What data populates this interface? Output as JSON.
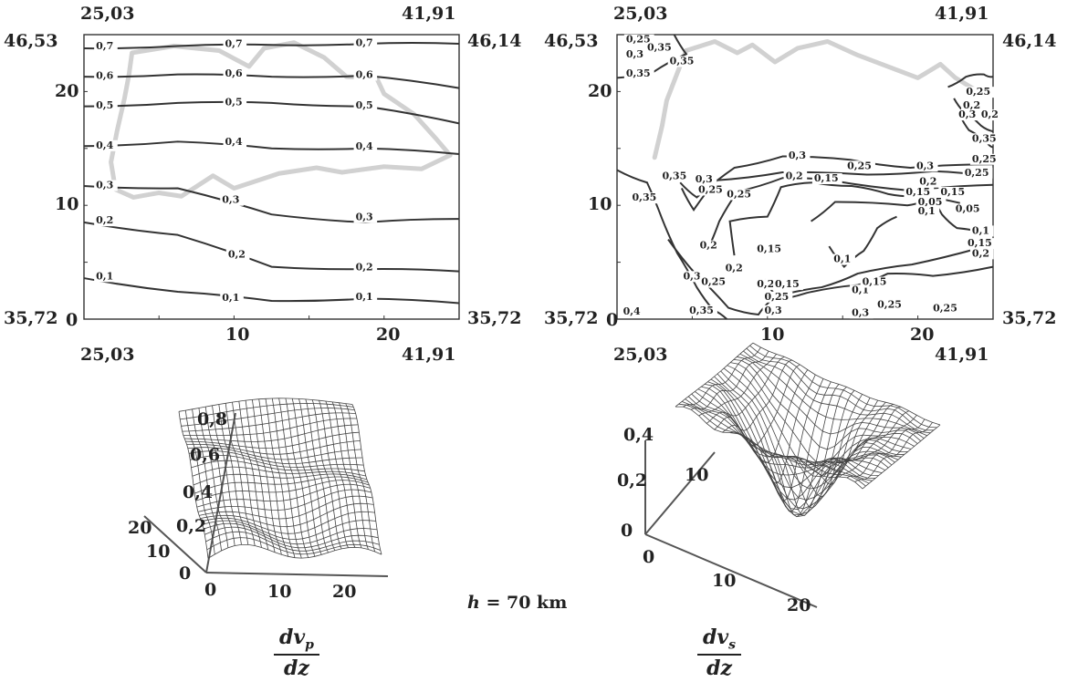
{
  "caption": {
    "h_var": "h",
    "h_value": "= 70 km"
  },
  "colors": {
    "contour": "#333333",
    "coast": "#c9c9c9",
    "mesh": "#444444",
    "axis": "#555555"
  },
  "chart_data": [
    {
      "type": "contour",
      "name_label": {
        "num": "dv",
        "sub": "p",
        "den": "dz"
      },
      "corner_labels": {
        "top_left_lon": "25,03",
        "top_right_lon": "41,91",
        "left_top_lat": "46,53",
        "right_top_lat": "46,14",
        "left_bottom_lat": "35,72",
        "right_bottom_lat": "35,72",
        "bottom_left_lon": "25,03",
        "bottom_right_lon": "41,91"
      },
      "xlim": [
        0,
        25
      ],
      "ylim": [
        0,
        25
      ],
      "x_ticks": [
        "10",
        "20"
      ],
      "y_ticks": [
        "0",
        "10",
        "20"
      ],
      "contours": [
        {
          "level": "0,7",
          "y": [
            23.8,
            24.0,
            24.1,
            24.2,
            24.2
          ]
        },
        {
          "level": "0,6",
          "y": [
            21.3,
            21.5,
            21.3,
            21.4,
            20.3
          ]
        },
        {
          "level": "0,5",
          "y": [
            18.7,
            19.0,
            19.0,
            18.7,
            17.2
          ]
        },
        {
          "level": "0,4",
          "y": [
            15.2,
            15.6,
            15.0,
            15.0,
            14.5
          ]
        },
        {
          "level": "0,3",
          "y": [
            11.7,
            11.5,
            9.2,
            8.5,
            8.8
          ]
        },
        {
          "level": "0,2",
          "y": [
            8.5,
            7.4,
            4.6,
            4.4,
            4.2
          ]
        },
        {
          "level": "0,1",
          "y": [
            3.6,
            2.4,
            1.6,
            1.8,
            1.4
          ]
        }
      ],
      "line_labels": [
        {
          "text": "0,7",
          "x": 0.8,
          "y": 23.7
        },
        {
          "text": "0,7",
          "x": 9.4,
          "y": 23.9
        },
        {
          "text": "0,7",
          "x": 18.1,
          "y": 24.0
        },
        {
          "text": "0,6",
          "x": 0.8,
          "y": 21.1
        },
        {
          "text": "0,6",
          "x": 9.4,
          "y": 21.3
        },
        {
          "text": "0,6",
          "x": 18.1,
          "y": 21.2
        },
        {
          "text": "0,5",
          "x": 0.8,
          "y": 18.5
        },
        {
          "text": "0,5",
          "x": 9.4,
          "y": 18.8
        },
        {
          "text": "0,5",
          "x": 18.1,
          "y": 18.5
        },
        {
          "text": "0,4",
          "x": 0.8,
          "y": 15.0
        },
        {
          "text": "0,4",
          "x": 9.4,
          "y": 15.3
        },
        {
          "text": "0,4",
          "x": 18.1,
          "y": 14.9
        },
        {
          "text": "0,3",
          "x": 0.8,
          "y": 11.5
        },
        {
          "text": "0,3",
          "x": 9.2,
          "y": 10.2
        },
        {
          "text": "0,3",
          "x": 18.1,
          "y": 8.7
        },
        {
          "text": "0,2",
          "x": 0.8,
          "y": 8.4
        },
        {
          "text": "0,2",
          "x": 9.6,
          "y": 5.4
        },
        {
          "text": "0,2",
          "x": 18.1,
          "y": 4.3
        },
        {
          "text": "0,1",
          "x": 0.8,
          "y": 3.5
        },
        {
          "text": "0,1",
          "x": 9.2,
          "y": 1.6
        },
        {
          "text": "0,1",
          "x": 18.1,
          "y": 1.7
        }
      ]
    },
    {
      "type": "contour",
      "name_label": {
        "num": "dv",
        "sub": "s",
        "den": "dz"
      },
      "corner_labels": {
        "top_left_lon": "25,03",
        "top_right_lon": "41,91",
        "left_top_lat": "46,53",
        "right_top_lat": "46,14",
        "left_bottom_lat": "35,72",
        "right_bottom_lat": "35,72",
        "bottom_left_lon": "25,03",
        "bottom_right_lon": "41,91"
      },
      "xlim": [
        0,
        25
      ],
      "ylim": [
        0,
        25
      ],
      "x_ticks": [
        "10",
        "20"
      ],
      "y_ticks": [
        "0",
        "10",
        "20"
      ],
      "contours": [
        {
          "level": "0,35",
          "points": [
            [
              3.8,
              25
            ],
            [
              4.6,
              23.3
            ],
            [
              2.4,
              21.7
            ],
            [
              0,
              21.2
            ]
          ]
        },
        {
          "level": "0,35",
          "points": [
            [
              0,
              13.1
            ],
            [
              2,
              12.0
            ],
            [
              3,
              8.8
            ],
            [
              4,
              5.8
            ],
            [
              5.3,
              2.8
            ],
            [
              6.4,
              0.8
            ],
            [
              7.3,
              0
            ]
          ]
        },
        {
          "level": "0,3",
          "points": [
            [
              4.2,
              12.0
            ],
            [
              5.3,
              10.7
            ],
            [
              7.8,
              13.3
            ],
            [
              11.0,
              14.3
            ],
            [
              15.5,
              14.0
            ],
            [
              19.5,
              13.3
            ],
            [
              25,
              13.6
            ]
          ]
        },
        {
          "level": "0,25",
          "points": [
            [
              4.3,
              11.5
            ],
            [
              5.1,
              9.6
            ],
            [
              6.6,
              12.2
            ],
            [
              11.0,
              12.9
            ],
            [
              16.6,
              12.7
            ],
            [
              21.0,
              13.0
            ],
            [
              25,
              12.5
            ]
          ]
        },
        {
          "level": "0,2",
          "points": [
            [
              3.4,
              7.0
            ],
            [
              5.2,
              4.0
            ],
            [
              7.4,
              1.0
            ],
            [
              9.4,
              0.4
            ],
            [
              10.2,
              1.6
            ],
            [
              12.6,
              2.3
            ],
            [
              16.0,
              3.0
            ],
            [
              18.0,
              4.0
            ],
            [
              21.0,
              3.8
            ],
            [
              25,
              4.6
            ]
          ]
        },
        {
          "level": "0,2",
          "points": [
            [
              6.0,
              6.0
            ],
            [
              6.8,
              8.6
            ],
            [
              8.0,
              11.2
            ],
            [
              11.0,
              12.4
            ],
            [
              14.2,
              12.2
            ],
            [
              19.5,
              11.3
            ],
            [
              25,
              11.8
            ]
          ]
        },
        {
          "level": "0,15",
          "points": [
            [
              7.8,
              5.6
            ],
            [
              7.5,
              8.6
            ],
            [
              10.0,
              9.0
            ],
            [
              10.9,
              11.6
            ],
            [
              13.1,
              12.0
            ],
            [
              15.6,
              11.7
            ],
            [
              18.0,
              11.0
            ],
            [
              20.0,
              10.8
            ],
            [
              22.8,
              10.2
            ]
          ]
        },
        {
          "level": "0,15",
          "points": [
            [
              9.8,
              3.5
            ],
            [
              10.6,
              2.0
            ],
            [
              13.6,
              2.8
            ],
            [
              16.0,
              4.0
            ],
            [
              19.6,
              4.8
            ],
            [
              25,
              6.6
            ]
          ]
        },
        {
          "level": "0,1",
          "points": [
            [
              12.9,
              8.6
            ],
            [
              14.5,
              10.3
            ],
            [
              19.3,
              10.0
            ],
            [
              20.9,
              10.6
            ],
            [
              21.6,
              9.2
            ],
            [
              22.6,
              8.0
            ],
            [
              25,
              7.4
            ]
          ]
        },
        {
          "level": "0,1",
          "points": [
            [
              14.1,
              6.4
            ],
            [
              15.1,
              4.6
            ],
            [
              16.4,
              6.0
            ],
            [
              17.3,
              8.0
            ],
            [
              18.6,
              9.0
            ]
          ]
        },
        {
          "level": "0,25",
          "points": [
            [
              22.4,
              19.4
            ],
            [
              23.0,
              18.3
            ],
            [
              24.2,
              17.0
            ],
            [
              25,
              16.5
            ]
          ]
        },
        {
          "level": "0,3",
          "points": [
            [
              22.0,
              20.4
            ],
            [
              23.2,
              21.3
            ],
            [
              24.4,
              21.5
            ],
            [
              25,
              21.3
            ]
          ]
        },
        {
          "level": "0,2",
          "points": [
            [
              22.8,
              17.9
            ],
            [
              23.4,
              16.6
            ],
            [
              24.6,
              15.5
            ],
            [
              25,
              15.1
            ]
          ]
        }
      ],
      "line_labels": [
        {
          "text": "0,25",
          "x": 0.6,
          "y": 24.3
        },
        {
          "text": "0,3",
          "x": 0.6,
          "y": 23.0
        },
        {
          "text": "0,35",
          "x": 0.6,
          "y": 21.3
        },
        {
          "text": "0,35",
          "x": 2.0,
          "y": 23.6
        },
        {
          "text": "0,35",
          "x": 3.5,
          "y": 22.4
        },
        {
          "text": "0,35",
          "x": 3.0,
          "y": 12.3
        },
        {
          "text": "0,35",
          "x": 1.0,
          "y": 10.4
        },
        {
          "text": "0,3",
          "x": 5.2,
          "y": 12.0
        },
        {
          "text": "0,25",
          "x": 5.4,
          "y": 11.1
        },
        {
          "text": "0,25",
          "x": 7.3,
          "y": 10.7
        },
        {
          "text": "0,3",
          "x": 11.4,
          "y": 14.1
        },
        {
          "text": "0,2",
          "x": 11.2,
          "y": 12.3
        },
        {
          "text": "0,15",
          "x": 13.1,
          "y": 12.1
        },
        {
          "text": "0,25",
          "x": 15.3,
          "y": 13.2
        },
        {
          "text": "0,3",
          "x": 19.9,
          "y": 13.2
        },
        {
          "text": "0,25",
          "x": 23.1,
          "y": 12.6
        },
        {
          "text": "0,2",
          "x": 20.1,
          "y": 11.8
        },
        {
          "text": "0,15",
          "x": 19.2,
          "y": 10.9
        },
        {
          "text": "0,15",
          "x": 21.5,
          "y": 10.9
        },
        {
          "text": "0,05",
          "x": 20.0,
          "y": 10.0
        },
        {
          "text": "0,1",
          "x": 20.0,
          "y": 9.2
        },
        {
          "text": "0,05",
          "x": 22.5,
          "y": 9.4
        },
        {
          "text": "0,2",
          "x": 5.5,
          "y": 6.2
        },
        {
          "text": "0,15",
          "x": 9.3,
          "y": 5.9
        },
        {
          "text": "0,2",
          "x": 7.2,
          "y": 4.2
        },
        {
          "text": "0,1",
          "x": 14.4,
          "y": 5.0
        },
        {
          "text": "0,3",
          "x": 4.4,
          "y": 3.5
        },
        {
          "text": "0,25",
          "x": 5.6,
          "y": 3.0
        },
        {
          "text": "0,2",
          "x": 9.3,
          "y": 2.8
        },
        {
          "text": "0,15",
          "x": 10.5,
          "y": 2.8
        },
        {
          "text": "0,25",
          "x": 9.8,
          "y": 1.7
        },
        {
          "text": "0,3",
          "x": 9.8,
          "y": 0.5
        },
        {
          "text": "0,35",
          "x": 4.8,
          "y": 0.5
        },
        {
          "text": "0,4",
          "x": 0.4,
          "y": 0.4
        },
        {
          "text": "0,1",
          "x": 15.6,
          "y": 2.3
        },
        {
          "text": "0,15",
          "x": 16.3,
          "y": 3.0
        },
        {
          "text": "0,3",
          "x": 15.6,
          "y": 0.3
        },
        {
          "text": "0,25",
          "x": 17.3,
          "y": 1.0
        },
        {
          "text": "0,25",
          "x": 21.0,
          "y": 0.7
        },
        {
          "text": "0,25",
          "x": 23.2,
          "y": 19.7
        },
        {
          "text": "0,2",
          "x": 23.0,
          "y": 18.5
        },
        {
          "text": "0,3",
          "x": 22.7,
          "y": 17.7
        },
        {
          "text": "0,2",
          "x": 24.2,
          "y": 17.7
        },
        {
          "text": "0,35",
          "x": 23.6,
          "y": 15.6
        },
        {
          "text": "0,25",
          "x": 23.6,
          "y": 13.8
        },
        {
          "text": "0,1",
          "x": 23.6,
          "y": 7.5
        },
        {
          "text": "0,15",
          "x": 23.3,
          "y": 6.4
        },
        {
          "text": "0,2",
          "x": 23.6,
          "y": 5.5
        }
      ]
    },
    {
      "type": "surface",
      "z_ticks": [
        "0,2",
        "0,4",
        "0,6",
        "0,8"
      ],
      "x_ticks": [
        "0",
        "10",
        "20"
      ],
      "y_ticks": [
        "10",
        "20"
      ]
    },
    {
      "type": "surface",
      "z_ticks": [
        "0",
        "0,2",
        "0,4"
      ],
      "y_ticks": [
        "10"
      ],
      "x_ticks": [
        "0",
        "10",
        "20"
      ]
    }
  ]
}
